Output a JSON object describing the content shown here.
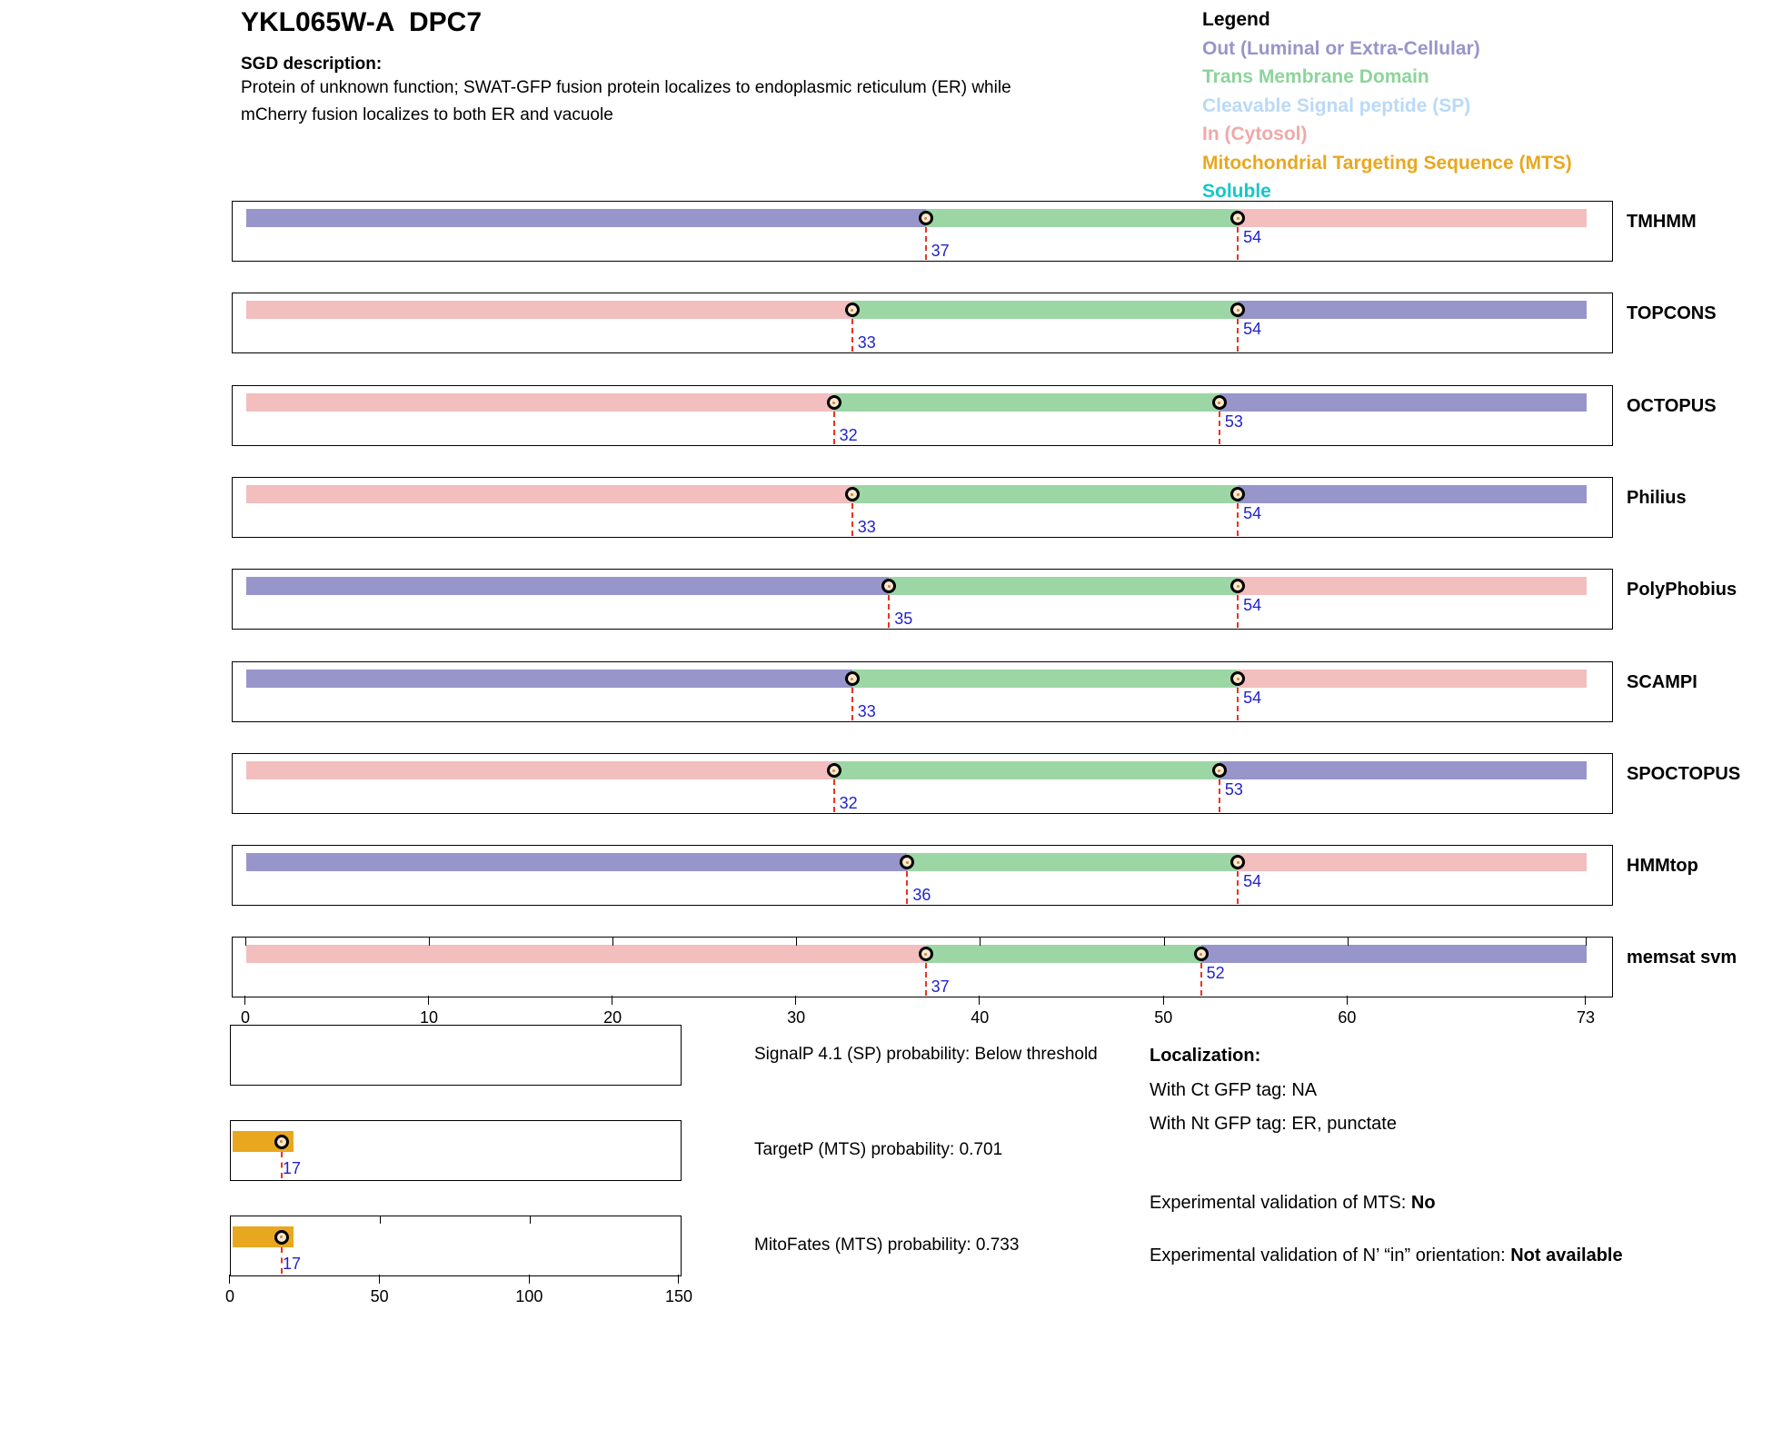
{
  "header": {
    "title": "YKL065W-A  DPC7",
    "sgd_label": "SGD description:",
    "description_lines": [
      "Protein of unknown function; SWAT-GFP fusion protein localizes to endoplasmic reticulum (ER) while",
      "mCherry fusion localizes to both ER and vacuole"
    ]
  },
  "legend": {
    "title": "Legend",
    "items": [
      {
        "key": "out",
        "label": "Out (Luminal or Extra-Cellular)",
        "color": "#9895CA"
      },
      {
        "key": "tm",
        "label": "Trans Membrane Domain",
        "color": "#8CD49B"
      },
      {
        "key": "sp",
        "label": "Cleavable Signal peptide (SP)",
        "color": "#BAD9F7"
      },
      {
        "key": "in",
        "label": "In (Cytosol)",
        "color": "#F0A9A9"
      },
      {
        "key": "mts",
        "label": "Mitochondrial Targeting Sequence (MTS)",
        "color": "#E9A71F"
      },
      {
        "key": "soluble",
        "label": "Soluble",
        "color": "#14C8C8"
      }
    ]
  },
  "chart_data": {
    "type": "topology-tracks",
    "sequence_axis": {
      "min": 0,
      "max": 73,
      "ticks": [
        0,
        10,
        20,
        30,
        40,
        50,
        60,
        73
      ]
    },
    "colors": {
      "out": "#9895CA",
      "tm": "#9CD6A4",
      "in": "#F2BEBE",
      "mts": "#E9A71F"
    },
    "marker_line_color": "#E93323",
    "marker_label_color": "#2222CC",
    "tracks": [
      {
        "name": "TMHMM",
        "segments": [
          {
            "type": "out",
            "start": 0,
            "end": 37
          },
          {
            "type": "tm",
            "start": 37,
            "end": 54
          },
          {
            "type": "in",
            "start": 54,
            "end": 73
          }
        ],
        "markers": [
          37,
          54
        ],
        "boundary_ticks": false
      },
      {
        "name": "TOPCONS",
        "segments": [
          {
            "type": "in",
            "start": 0,
            "end": 33
          },
          {
            "type": "tm",
            "start": 33,
            "end": 54
          },
          {
            "type": "out",
            "start": 54,
            "end": 73
          }
        ],
        "markers": [
          33,
          54
        ],
        "boundary_ticks": false
      },
      {
        "name": "OCTOPUS",
        "segments": [
          {
            "type": "in",
            "start": 0,
            "end": 32
          },
          {
            "type": "tm",
            "start": 32,
            "end": 53
          },
          {
            "type": "out",
            "start": 53,
            "end": 73
          }
        ],
        "markers": [
          32,
          53
        ],
        "boundary_ticks": false
      },
      {
        "name": "Philius",
        "segments": [
          {
            "type": "in",
            "start": 0,
            "end": 33
          },
          {
            "type": "tm",
            "start": 33,
            "end": 54
          },
          {
            "type": "out",
            "start": 54,
            "end": 73
          }
        ],
        "markers": [
          33,
          54
        ],
        "boundary_ticks": false
      },
      {
        "name": "PolyPhobius",
        "segments": [
          {
            "type": "out",
            "start": 0,
            "end": 35
          },
          {
            "type": "tm",
            "start": 35,
            "end": 54
          },
          {
            "type": "in",
            "start": 54,
            "end": 73
          }
        ],
        "markers": [
          35,
          54
        ],
        "boundary_ticks": false
      },
      {
        "name": "SCAMPI",
        "segments": [
          {
            "type": "out",
            "start": 0,
            "end": 33
          },
          {
            "type": "tm",
            "start": 33,
            "end": 54
          },
          {
            "type": "in",
            "start": 54,
            "end": 73
          }
        ],
        "markers": [
          33,
          54
        ],
        "boundary_ticks": false
      },
      {
        "name": "SPOCTOPUS",
        "segments": [
          {
            "type": "in",
            "start": 0,
            "end": 32
          },
          {
            "type": "tm",
            "start": 32,
            "end": 53
          },
          {
            "type": "out",
            "start": 53,
            "end": 73
          }
        ],
        "markers": [
          32,
          53
        ],
        "boundary_ticks": false
      },
      {
        "name": "HMMtop",
        "segments": [
          {
            "type": "out",
            "start": 0,
            "end": 36
          },
          {
            "type": "tm",
            "start": 36,
            "end": 54
          },
          {
            "type": "in",
            "start": 54,
            "end": 73
          }
        ],
        "markers": [
          36,
          54
        ],
        "boundary_ticks": false
      },
      {
        "name": "memsat svm",
        "segments": [
          {
            "type": "in",
            "start": 0,
            "end": 37
          },
          {
            "type": "tm",
            "start": 37,
            "end": 52
          },
          {
            "type": "out",
            "start": 52,
            "end": 73
          }
        ],
        "markers": [
          37,
          52
        ],
        "boundary_ticks": true
      }
    ],
    "probability_axis": {
      "min": 0,
      "max": 150,
      "ticks": [
        0,
        50,
        100,
        150
      ],
      "inner_ticks": [
        50,
        100
      ]
    },
    "probability_panels": [
      {
        "label": "SignalP 4.1 (SP) probability: Below threshold",
        "bar": null
      },
      {
        "label": "TargetP (MTS) probability: 0.701",
        "bar": {
          "type": "mts",
          "start": 0,
          "end": 21,
          "marker": 17
        }
      },
      {
        "label": "MitoFates (MTS) probability: 0.733",
        "bar": {
          "type": "mts",
          "start": 0,
          "end": 21,
          "marker": 17
        }
      }
    ]
  },
  "localization": {
    "title": "Localization:",
    "ct_line": "With Ct GFP tag: NA",
    "nt_line": "With Nt GFP tag: ER, punctate",
    "mts_prefix": "Experimental validation of MTS: ",
    "mts_value": "No",
    "orientation_prefix": "Experimental validation of N’ “in” orientation: ",
    "orientation_value": "Not available"
  }
}
